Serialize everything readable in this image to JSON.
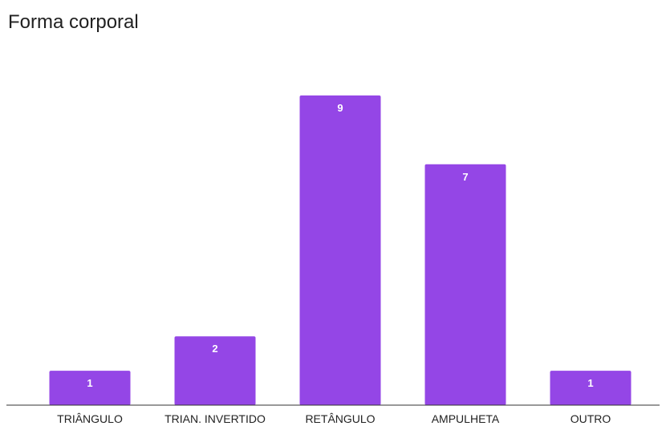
{
  "chart_data": {
    "type": "bar",
    "title": "Forma corporal",
    "categories": [
      "TRIÂNGULO",
      "TRIAN. INVERTIDO",
      "RETÂNGULO",
      "AMPULHETA",
      "OUTRO"
    ],
    "values": [
      1,
      2,
      9,
      7,
      1
    ],
    "xlabel": "",
    "ylabel": "",
    "ylim": [
      0,
      9
    ],
    "grid": false,
    "legend": "none",
    "bar_color": "#9446e6",
    "data_labels": true
  }
}
